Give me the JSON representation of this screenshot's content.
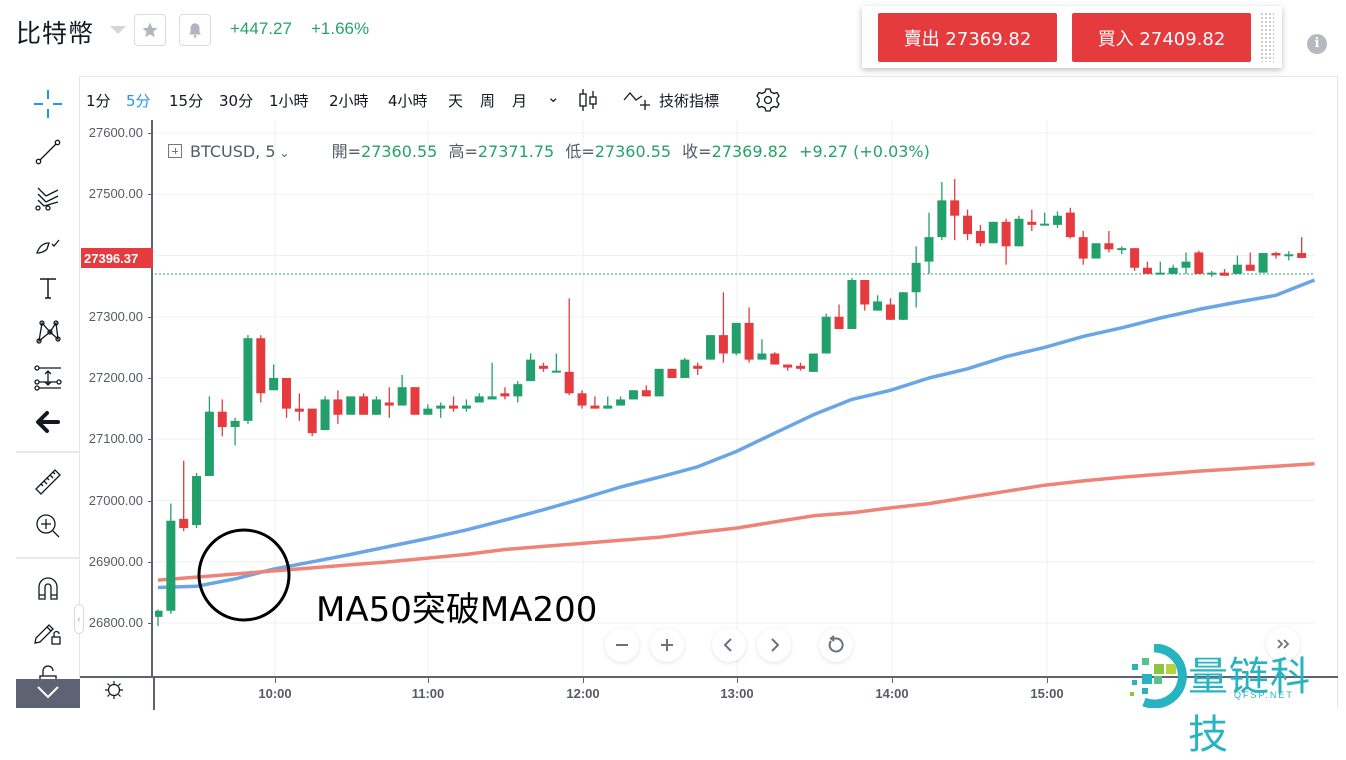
{
  "header": {
    "symbol_name": "比特幣",
    "change_abs": "+447.27",
    "change_pct": "+1.66%",
    "star_icon": "star-icon",
    "alert_icon": "bell-icon"
  },
  "trade": {
    "sell_label": "賣出 27369.82",
    "buy_label": "買入 27409.82",
    "info_icon": "info-icon"
  },
  "toolbar": {
    "timeframes": [
      "1分",
      "5分",
      "15分",
      "30分",
      "1小時",
      "2小時",
      "4小時",
      "天",
      "周",
      "月"
    ],
    "active_timeframe": "5分",
    "more_label": "⌄",
    "indicators_label": "技術指標"
  },
  "legend": {
    "symbol": "BTCUSD, 5",
    "open_label": "開=",
    "open": "27360.55",
    "high_label": "高=",
    "high": "27371.75",
    "low_label": "低=",
    "low": "27360.55",
    "close_label": "收=",
    "close": "27369.82",
    "change": "+9.27 (+0.03%)"
  },
  "price_axis": {
    "labels": [
      "27600.00",
      "27500.00",
      "27300.00",
      "27200.00",
      "27100.00",
      "27000.00",
      "26900.00",
      "26800.00"
    ],
    "current_price": "27396.37"
  },
  "time_axis": {
    "labels": [
      "10:00",
      "11:00",
      "12:00",
      "13:00",
      "14:00",
      "15:00"
    ]
  },
  "annotation": {
    "text": "MA50突破MA200"
  },
  "watermark": {
    "text": "量链科技",
    "subtext": "QFSP.NET"
  },
  "colors": {
    "up": "#22a06b",
    "down": "#e53b3e",
    "ma50": "#6aa5e6",
    "ma200": "#f08378",
    "accent": "#2196f3",
    "trade_button": "#e53b3e"
  },
  "chart_data": {
    "type": "candlestick",
    "title": "BTCUSD, 5",
    "xlabel": "",
    "ylabel": "",
    "ylim": [
      26760,
      27620
    ],
    "x_ticks": [
      "10:00",
      "11:00",
      "12:00",
      "13:00",
      "14:00",
      "15:00"
    ],
    "y_ticks": [
      26800,
      26900,
      27000,
      27100,
      27200,
      27300,
      27500,
      27600
    ],
    "last_price_line": 27369.82,
    "candles": [
      [
        26810,
        26820,
        26795,
        26822
      ],
      [
        26820,
        26967,
        26815,
        26995
      ],
      [
        26970,
        26955,
        26950,
        27065
      ],
      [
        26960,
        27040,
        26955,
        27045
      ],
      [
        27040,
        27145,
        27040,
        27170
      ],
      [
        27145,
        27120,
        27105,
        27165
      ],
      [
        27120,
        27130,
        27090,
        27135
      ],
      [
        27130,
        27265,
        27125,
        27270
      ],
      [
        27265,
        27175,
        27160,
        27270
      ],
      [
        27180,
        27200,
        27180,
        27222
      ],
      [
        27200,
        27150,
        27135,
        27200
      ],
      [
        27150,
        27145,
        27130,
        27175
      ],
      [
        27150,
        27110,
        27105,
        27150
      ],
      [
        27115,
        27165,
        27115,
        27170
      ],
      [
        27165,
        27140,
        27125,
        27180
      ],
      [
        27140,
        27170,
        27140,
        27170
      ],
      [
        27170,
        27140,
        27140,
        27175
      ],
      [
        27140,
        27165,
        27140,
        27170
      ],
      [
        27160,
        27155,
        27135,
        27185
      ],
      [
        27155,
        27185,
        27155,
        27205
      ],
      [
        27185,
        27140,
        27140,
        27185
      ],
      [
        27140,
        27150,
        27140,
        27157
      ],
      [
        27150,
        27155,
        27135,
        27160
      ],
      [
        27155,
        27150,
        27145,
        27170
      ],
      [
        27150,
        27155,
        27145,
        27165
      ],
      [
        27160,
        27170,
        27160,
        27175
      ],
      [
        27165,
        27170,
        27165,
        27225
      ],
      [
        27175,
        27170,
        27165,
        27185
      ],
      [
        27170,
        27190,
        27160,
        27195
      ],
      [
        27195,
        27230,
        27195,
        27240
      ],
      [
        27220,
        27215,
        27210,
        27225
      ],
      [
        27210,
        27212,
        27210,
        27240
      ],
      [
        27210,
        27175,
        27172,
        27330
      ],
      [
        27175,
        27155,
        27150,
        27180
      ],
      [
        27155,
        27150,
        27150,
        27170
      ],
      [
        27150,
        27155,
        27150,
        27170
      ],
      [
        27155,
        27165,
        27155,
        27170
      ],
      [
        27165,
        27180,
        27165,
        27180
      ],
      [
        27180,
        27170,
        27170,
        27188
      ],
      [
        27170,
        27215,
        27170,
        27215
      ],
      [
        27215,
        27200,
        27200,
        27215
      ],
      [
        27200,
        27230,
        27200,
        27233
      ],
      [
        27220,
        27215,
        27205,
        27225
      ],
      [
        27230,
        27270,
        27230,
        27270
      ],
      [
        27270,
        27240,
        27225,
        27340
      ],
      [
        27240,
        27290,
        27237,
        27290
      ],
      [
        27290,
        27230,
        27225,
        27315
      ],
      [
        27230,
        27240,
        27230,
        27263
      ],
      [
        27240,
        27222,
        27222,
        27242
      ],
      [
        27222,
        27217,
        27212,
        27222
      ],
      [
        27220,
        27215,
        27212,
        27225
      ],
      [
        27210,
        27240,
        27210,
        27240
      ],
      [
        27240,
        27300,
        27240,
        27305
      ],
      [
        27300,
        27280,
        27280,
        27320
      ],
      [
        27280,
        27360,
        27280,
        27363
      ],
      [
        27360,
        27320,
        27310,
        27360
      ],
      [
        27310,
        27325,
        27310,
        27335
      ],
      [
        27320,
        27295,
        27295,
        27330
      ],
      [
        27295,
        27340,
        27295,
        27340
      ],
      [
        27340,
        27388,
        27315,
        27415
      ],
      [
        27390,
        27430,
        27370,
        27470
      ],
      [
        27430,
        27490,
        27425,
        27520
      ],
      [
        27490,
        27465,
        27425,
        27525
      ],
      [
        27465,
        27435,
        27425,
        27475
      ],
      [
        27440,
        27420,
        27415,
        27450
      ],
      [
        27420,
        27455,
        27420,
        27455
      ],
      [
        27455,
        27415,
        27385,
        27460
      ],
      [
        27415,
        27460,
        27415,
        27465
      ],
      [
        27455,
        27450,
        27440,
        27475
      ],
      [
        27450,
        27452,
        27450,
        27470
      ],
      [
        27450,
        27465,
        27445,
        27472
      ],
      [
        27470,
        27430,
        27428,
        27478
      ],
      [
        27430,
        27395,
        27385,
        27440
      ],
      [
        27395,
        27420,
        27395,
        27420
      ],
      [
        27420,
        27410,
        27405,
        27440
      ],
      [
        27410,
        27412,
        27402,
        27415
      ],
      [
        27412,
        27380,
        27375,
        27412
      ],
      [
        27380,
        27370,
        27370,
        27390
      ],
      [
        27370,
        27372,
        27370,
        27390
      ],
      [
        27370,
        27380,
        27370,
        27385
      ],
      [
        27380,
        27390,
        27370,
        27405
      ],
      [
        27405,
        27370,
        27370,
        27408
      ],
      [
        27370,
        27372,
        27365,
        27375
      ],
      [
        27372,
        27367,
        27367,
        27378
      ],
      [
        27370,
        27385,
        27370,
        27400
      ],
      [
        27385,
        27375,
        27375,
        27405
      ],
      [
        27372,
        27404,
        27372,
        27404
      ],
      [
        27404,
        27400,
        27395,
        27406
      ],
      [
        27400,
        27402,
        27392,
        27407
      ],
      [
        27404,
        27396,
        27396,
        27430
      ]
    ],
    "series": [
      {
        "name": "MA50",
        "color": "#6aa5e6",
        "points": [
          [
            0,
            26858
          ],
          [
            3,
            26860
          ],
          [
            6,
            26872
          ],
          [
            9,
            26888
          ],
          [
            12,
            26900
          ],
          [
            15,
            26912
          ],
          [
            18,
            26925
          ],
          [
            21,
            26938
          ],
          [
            24,
            26952
          ],
          [
            27,
            26968
          ],
          [
            30,
            26985
          ],
          [
            33,
            27003
          ],
          [
            36,
            27022
          ],
          [
            39,
            27038
          ],
          [
            42,
            27055
          ],
          [
            45,
            27080
          ],
          [
            48,
            27110
          ],
          [
            51,
            27140
          ],
          [
            54,
            27165
          ],
          [
            57,
            27180
          ],
          [
            60,
            27200
          ],
          [
            63,
            27215
          ],
          [
            66,
            27235
          ],
          [
            69,
            27250
          ],
          [
            72,
            27268
          ],
          [
            75,
            27282
          ],
          [
            78,
            27298
          ],
          [
            81,
            27312
          ],
          [
            84,
            27324
          ],
          [
            87,
            27335
          ],
          [
            90,
            27360
          ]
        ]
      },
      {
        "name": "MA200",
        "color": "#f08378",
        "points": [
          [
            0,
            26870
          ],
          [
            3,
            26875
          ],
          [
            6,
            26880
          ],
          [
            9,
            26885
          ],
          [
            12,
            26890
          ],
          [
            15,
            26895
          ],
          [
            18,
            26900
          ],
          [
            21,
            26906
          ],
          [
            24,
            26912
          ],
          [
            27,
            26920
          ],
          [
            30,
            26925
          ],
          [
            33,
            26930
          ],
          [
            36,
            26935
          ],
          [
            39,
            26940
          ],
          [
            42,
            26948
          ],
          [
            45,
            26955
          ],
          [
            48,
            26965
          ],
          [
            51,
            26975
          ],
          [
            54,
            26980
          ],
          [
            57,
            26988
          ],
          [
            60,
            26995
          ],
          [
            63,
            27005
          ],
          [
            66,
            27015
          ],
          [
            69,
            27025
          ],
          [
            72,
            27032
          ],
          [
            75,
            27038
          ],
          [
            78,
            27043
          ],
          [
            81,
            27048
          ],
          [
            84,
            27052
          ],
          [
            87,
            27056
          ],
          [
            90,
            27060
          ]
        ]
      }
    ]
  }
}
